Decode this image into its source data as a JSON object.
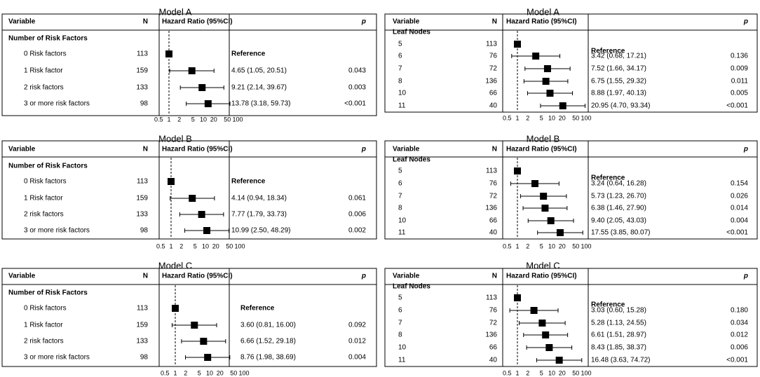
{
  "chart_data": [
    {
      "type": "forest",
      "title": "Model A",
      "header": {
        "variable": "Variable",
        "n": "N",
        "hr": "Hazard Ratio (95%CI)",
        "p": "p"
      },
      "group_label": "Number of Risk Factors",
      "scale": "log",
      "reference_line": 1,
      "xticks": [
        "0.5",
        "1",
        "2",
        "5",
        "10",
        "20",
        "50",
        "100"
      ],
      "rows": [
        {
          "label": "0 Risk factors",
          "n": "113",
          "hr": 1.0,
          "lo": null,
          "hi": null,
          "text": "Reference",
          "p": ""
        },
        {
          "label": "1 Risk factor",
          "n": "159",
          "hr": 4.65,
          "lo": 1.05,
          "hi": 20.51,
          "text": "4.65 (1.05, 20.51)",
          "p": "0.043"
        },
        {
          "label": "2 risk factors",
          "n": "133",
          "hr": 9.21,
          "lo": 2.14,
          "hi": 39.67,
          "text": "9.21 (2.14, 39.67)",
          "p": "0.003"
        },
        {
          "label": "3 or more risk factors",
          "n": "98",
          "hr": 13.78,
          "lo": 3.18,
          "hi": 59.73,
          "text": "13.78 (3.18, 59.73)",
          "p": "<0.001"
        }
      ]
    },
    {
      "type": "forest",
      "title": "Model A",
      "header": {
        "variable": "Variable",
        "n": "N",
        "hr": "Hazard Ratio (95%CI)",
        "p": "p"
      },
      "group_label": "Leaf Nodes",
      "scale": "log",
      "reference_line": 1,
      "xticks": [
        "0.5",
        "1",
        "2",
        "5",
        "10",
        "20",
        "50",
        "100"
      ],
      "rows": [
        {
          "label": "5",
          "n": "113",
          "hr": 1.0,
          "lo": null,
          "hi": null,
          "text": "",
          "p": ""
        },
        {
          "label": "6",
          "n": "76",
          "hr": 3.42,
          "lo": 0.68,
          "hi": 17.21,
          "text": "3.42 (0.68, 17.21)",
          "p": "0.136"
        },
        {
          "label": "7",
          "n": "72",
          "hr": 7.52,
          "lo": 1.66,
          "hi": 34.17,
          "text": "7.52 (1.66, 34.17)",
          "p": "0.009"
        },
        {
          "label": "8",
          "n": "136",
          "hr": 6.75,
          "lo": 1.55,
          "hi": 29.32,
          "text": "6.75 (1.55, 29.32)",
          "p": "0.011"
        },
        {
          "label": "10",
          "n": "66",
          "hr": 8.88,
          "lo": 1.97,
          "hi": 40.13,
          "text": "8.88 (1.97, 40.13)",
          "p": "0.005"
        },
        {
          "label": "11",
          "n": "40",
          "hr": 20.95,
          "lo": 4.7,
          "hi": 93.34,
          "text": "20.95 (4.70, 93.34)",
          "p": "<0.001"
        }
      ],
      "reference_text": "Reference"
    },
    {
      "type": "forest",
      "title": "Model B",
      "header": {
        "variable": "Variable",
        "n": "N",
        "hr": "Hazard Ratio (95%CI)",
        "p": "p"
      },
      "group_label": "Number of Risk Factors",
      "scale": "log",
      "reference_line": 1,
      "xticks": [
        "0.5",
        "1",
        "2",
        "5",
        "10",
        "20",
        "50",
        "100"
      ],
      "rows": [
        {
          "label": "0 Risk factors",
          "n": "113",
          "hr": 1.0,
          "lo": null,
          "hi": null,
          "text": "Reference",
          "p": ""
        },
        {
          "label": "1 Risk factor",
          "n": "159",
          "hr": 4.14,
          "lo": 0.94,
          "hi": 18.34,
          "text": "4.14 (0.94, 18.34)",
          "p": "0.061"
        },
        {
          "label": "2 risk factors",
          "n": "133",
          "hr": 7.77,
          "lo": 1.79,
          "hi": 33.73,
          "text": "7.77 (1.79, 33.73)",
          "p": "0.006"
        },
        {
          "label": "3 or more risk factors",
          "n": "98",
          "hr": 10.99,
          "lo": 2.5,
          "hi": 48.29,
          "text": "10.99 (2.50, 48.29)",
          "p": "0.002"
        }
      ]
    },
    {
      "type": "forest",
      "title": "Model B",
      "header": {
        "variable": "Variable",
        "n": "N",
        "hr": "Hazard Ratio (95%CI)",
        "p": "p"
      },
      "group_label": "Leaf Nodes",
      "scale": "log",
      "reference_line": 1,
      "xticks": [
        "0.5",
        "1",
        "2",
        "5",
        "10",
        "20",
        "50",
        "100"
      ],
      "rows": [
        {
          "label": "5",
          "n": "113",
          "hr": 1.0,
          "lo": null,
          "hi": null,
          "text": "",
          "p": ""
        },
        {
          "label": "6",
          "n": "76",
          "hr": 3.24,
          "lo": 0.64,
          "hi": 16.28,
          "text": "3.24 (0.64, 16.28)",
          "p": "0.154"
        },
        {
          "label": "7",
          "n": "72",
          "hr": 5.73,
          "lo": 1.23,
          "hi": 26.7,
          "text": "5.73 (1.23, 26.70)",
          "p": "0.026"
        },
        {
          "label": "8",
          "n": "136",
          "hr": 6.38,
          "lo": 1.46,
          "hi": 27.9,
          "text": "6.38 (1.46, 27.90)",
          "p": "0.014"
        },
        {
          "label": "10",
          "n": "66",
          "hr": 9.4,
          "lo": 2.05,
          "hi": 43.03,
          "text": "9.40 (2.05, 43.03)",
          "p": "0.004"
        },
        {
          "label": "11",
          "n": "40",
          "hr": 17.55,
          "lo": 3.85,
          "hi": 80.07,
          "text": "17.55 (3.85, 80.07)",
          "p": "<0.001"
        }
      ],
      "reference_text": "Reference"
    },
    {
      "type": "forest",
      "title": "Model C",
      "header": {
        "variable": "Variable",
        "n": "N",
        "hr": "Hazard Ratio (95%CI)",
        "p": "p"
      },
      "group_label": "Number of Risk Factors",
      "scale": "log",
      "reference_line": 1,
      "xticks": [
        "0.5",
        "1",
        "2",
        "5",
        "10",
        "20",
        "50",
        "100"
      ],
      "rows": [
        {
          "label": "0 Risk factors",
          "n": "113",
          "hr": 1.0,
          "lo": null,
          "hi": null,
          "text": "Reference",
          "p": ""
        },
        {
          "label": "1 Risk factor",
          "n": "159",
          "hr": 3.6,
          "lo": 0.81,
          "hi": 16.0,
          "text": "3.60 (0.81, 16.00)",
          "p": "0.092"
        },
        {
          "label": "2 risk factors",
          "n": "133",
          "hr": 6.66,
          "lo": 1.52,
          "hi": 29.18,
          "text": "6.66 (1.52, 29.18)",
          "p": "0.012"
        },
        {
          "label": "3 or more risk factors",
          "n": "98",
          "hr": 8.76,
          "lo": 1.98,
          "hi": 38.69,
          "text": "8.76 (1.98, 38.69)",
          "p": "0.004"
        }
      ]
    },
    {
      "type": "forest",
      "title": "Model C",
      "header": {
        "variable": "Variable",
        "n": "N",
        "hr": "Hazard Ratio (95%CI)",
        "p": "p"
      },
      "group_label": "Leaf Nodes",
      "scale": "log",
      "reference_line": 1,
      "xticks": [
        "0.5",
        "1",
        "2",
        "5",
        "10",
        "20",
        "50",
        "100"
      ],
      "rows": [
        {
          "label": "5",
          "n": "113",
          "hr": 1.0,
          "lo": null,
          "hi": null,
          "text": "",
          "p": ""
        },
        {
          "label": "6",
          "n": "76",
          "hr": 3.03,
          "lo": 0.6,
          "hi": 15.28,
          "text": "3.03 (0.60, 15.28)",
          "p": "0.180"
        },
        {
          "label": "7",
          "n": "72",
          "hr": 5.28,
          "lo": 1.13,
          "hi": 24.55,
          "text": "5.28 (1.13, 24.55)",
          "p": "0.034"
        },
        {
          "label": "8",
          "n": "136",
          "hr": 6.61,
          "lo": 1.51,
          "hi": 28.97,
          "text": "6.61 (1.51, 28.97)",
          "p": "0.012"
        },
        {
          "label": "10",
          "n": "66",
          "hr": 8.43,
          "lo": 1.85,
          "hi": 38.37,
          "text": "8.43 (1.85, 38.37)",
          "p": "0.006"
        },
        {
          "label": "11",
          "n": "40",
          "hr": 16.48,
          "lo": 3.63,
          "hi": 74.72,
          "text": "16.48 (3.63, 74.72)",
          "p": "<0.001"
        }
      ],
      "reference_text": "Reference"
    }
  ]
}
